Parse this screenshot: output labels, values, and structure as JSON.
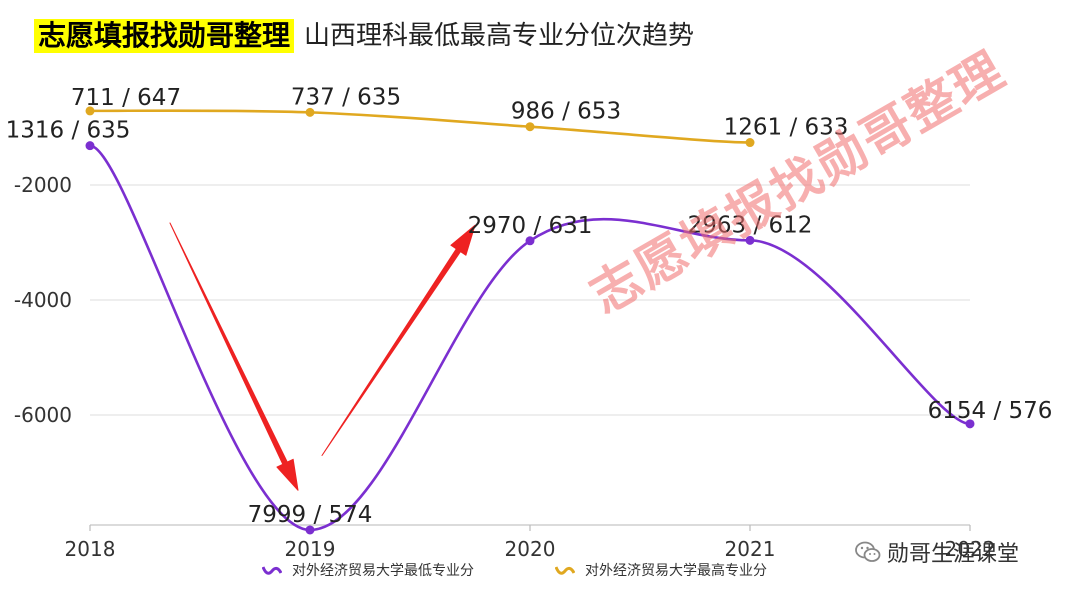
{
  "header": {
    "brand": "志愿填报找勋哥整理",
    "subtitle": "山西理科最低最高专业分位次趋势"
  },
  "watermark": "志愿填报找勋哥整理",
  "wechat": {
    "label": "勋哥生涯课堂",
    "icon": "wechat-icon"
  },
  "chart_data": {
    "type": "line",
    "title": "山西理科最低最高专业分位次趋势",
    "categories": [
      "2018",
      "2019",
      "2020",
      "2021",
      "2022"
    ],
    "ylim": [
      -8000,
      0
    ],
    "yticks": [
      "-2000",
      "-4000",
      "-6000"
    ],
    "ytick_values": [
      -2000,
      -4000,
      -6000
    ],
    "grid": true,
    "legend": "bottom",
    "series": [
      {
        "name": "对外经济贸易大学最低专业分",
        "color": "#7b2fd0",
        "values": [
          -1316,
          -7999,
          -2970,
          -2963,
          -6154
        ],
        "labels": [
          "1316 / 635",
          "7999 / 574",
          "2970 / 631",
          "2963 / 612",
          "6154 / 576"
        ]
      },
      {
        "name": "对外经济贸易大学最高专业分",
        "color": "#e0a820",
        "values": [
          -711,
          -737,
          -986,
          -1261,
          null
        ],
        "labels": [
          "711 / 647",
          "737 / 635",
          "986 / 653",
          "1261 / 633",
          null
        ]
      }
    ],
    "annotations": [
      {
        "type": "arrow",
        "color": "#ee2222",
        "from": [
          "2018",
          -800
        ],
        "to": [
          "2019",
          -6700
        ]
      },
      {
        "type": "arrow",
        "color": "#ee2222",
        "from": [
          "2019",
          -7000
        ],
        "to": [
          "2020",
          -2700
        ]
      }
    ]
  }
}
